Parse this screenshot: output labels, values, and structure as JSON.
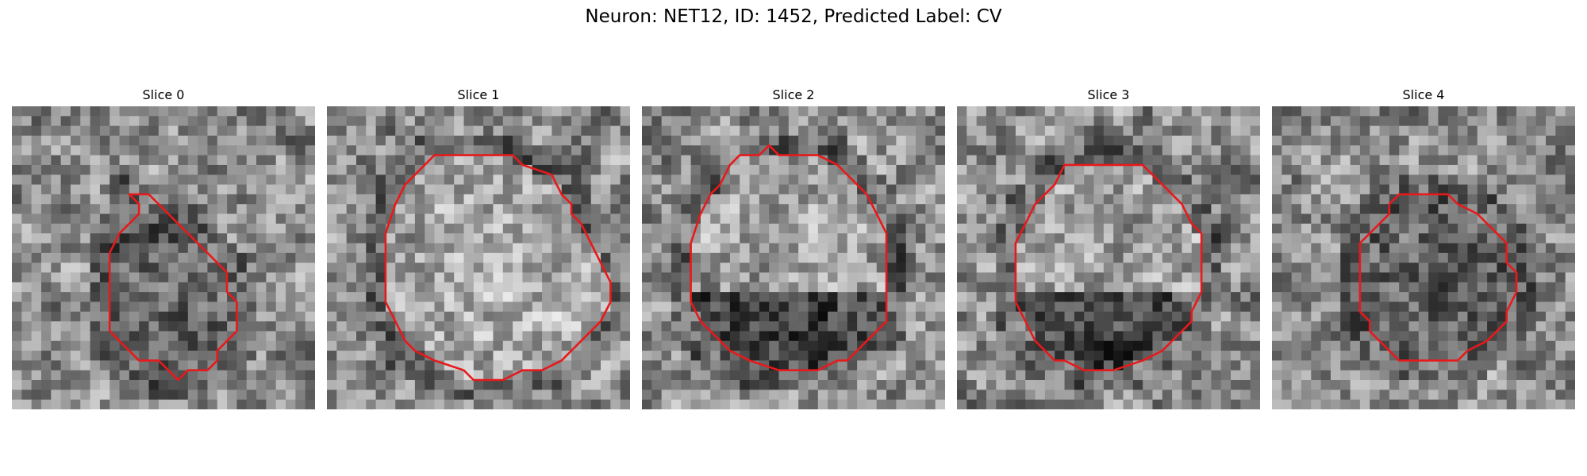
{
  "figure": {
    "title": "Neuron: NET12, ID: 1452, Predicted Label: CV"
  },
  "colors": {
    "contour": "#e8191b",
    "background": "#ffffff",
    "colormap": "grayscale"
  },
  "panels": [
    {
      "title": "Slice 0",
      "grid": {
        "rows": 31,
        "cols": 31
      },
      "contour": [
        [
          12,
          9
        ],
        [
          14,
          9
        ],
        [
          15,
          10
        ],
        [
          17,
          12
        ],
        [
          19,
          14
        ],
        [
          20,
          15
        ],
        [
          21,
          16
        ],
        [
          22,
          17
        ],
        [
          22,
          19
        ],
        [
          23,
          20
        ],
        [
          23,
          23
        ],
        [
          22,
          24
        ],
        [
          21,
          25
        ],
        [
          21,
          26
        ],
        [
          20,
          27
        ],
        [
          18,
          27
        ],
        [
          17,
          28
        ],
        [
          16,
          27
        ],
        [
          15,
          26
        ],
        [
          13,
          26
        ],
        [
          12,
          25
        ],
        [
          11,
          24
        ],
        [
          10,
          23
        ],
        [
          10,
          21
        ],
        [
          10,
          18
        ],
        [
          10,
          15
        ],
        [
          11,
          13
        ],
        [
          12,
          12
        ],
        [
          13,
          11
        ],
        [
          13,
          10
        ]
      ],
      "interior_tone": "darker",
      "seed": 11
    },
    {
      "title": "Slice 1",
      "grid": {
        "rows": 31,
        "cols": 31
      },
      "contour": [
        [
          11,
          5
        ],
        [
          19,
          5
        ],
        [
          20,
          6
        ],
        [
          23,
          7
        ],
        [
          24,
          9
        ],
        [
          25,
          10
        ],
        [
          25,
          11
        ],
        [
          26,
          12
        ],
        [
          27,
          14
        ],
        [
          28,
          16
        ],
        [
          29,
          18
        ],
        [
          29,
          20
        ],
        [
          28,
          22
        ],
        [
          26,
          24
        ],
        [
          24,
          26
        ],
        [
          22,
          27
        ],
        [
          20,
          27
        ],
        [
          18,
          28
        ],
        [
          15,
          28
        ],
        [
          14,
          27
        ],
        [
          11,
          26
        ],
        [
          9,
          25
        ],
        [
          8,
          24
        ],
        [
          7,
          22
        ],
        [
          6,
          20
        ],
        [
          6,
          17
        ],
        [
          6,
          13
        ],
        [
          7,
          10
        ],
        [
          8,
          8
        ],
        [
          9,
          7
        ],
        [
          10,
          6
        ]
      ],
      "interior_tone": "lighter",
      "seed": 23
    },
    {
      "title": "Slice 2",
      "grid": {
        "rows": 31,
        "cols": 31
      },
      "contour": [
        [
          10,
          5
        ],
        [
          12,
          5
        ],
        [
          13,
          4
        ],
        [
          14,
          5
        ],
        [
          18,
          5
        ],
        [
          20,
          6
        ],
        [
          21,
          7
        ],
        [
          22,
          8
        ],
        [
          23,
          9
        ],
        [
          24,
          11
        ],
        [
          25,
          13
        ],
        [
          25,
          16
        ],
        [
          25,
          19
        ],
        [
          25,
          22
        ],
        [
          24,
          23
        ],
        [
          23,
          24
        ],
        [
          22,
          25
        ],
        [
          21,
          26
        ],
        [
          20,
          26
        ],
        [
          18,
          27
        ],
        [
          16,
          27
        ],
        [
          14,
          27
        ],
        [
          11,
          26
        ],
        [
          9,
          25
        ],
        [
          8,
          24
        ],
        [
          6,
          22
        ],
        [
          5,
          20
        ],
        [
          5,
          17
        ],
        [
          5,
          14
        ],
        [
          6,
          11
        ],
        [
          7,
          9
        ],
        [
          8,
          8
        ],
        [
          9,
          6
        ]
      ],
      "interior_tone": "mixed",
      "seed": 37
    },
    {
      "title": "Slice 3",
      "grid": {
        "rows": 31,
        "cols": 31
      },
      "contour": [
        [
          11,
          6
        ],
        [
          19,
          6
        ],
        [
          20,
          7
        ],
        [
          21,
          8
        ],
        [
          22,
          9
        ],
        [
          23,
          10
        ],
        [
          24,
          12
        ],
        [
          25,
          13
        ],
        [
          25,
          16
        ],
        [
          25,
          19
        ],
        [
          24,
          21
        ],
        [
          24,
          22
        ],
        [
          23,
          23
        ],
        [
          22,
          24
        ],
        [
          21,
          25
        ],
        [
          19,
          26
        ],
        [
          16,
          27
        ],
        [
          13,
          27
        ],
        [
          11,
          26
        ],
        [
          10,
          26
        ],
        [
          9,
          25
        ],
        [
          8,
          24
        ],
        [
          7,
          22
        ],
        [
          6,
          20
        ],
        [
          6,
          17
        ],
        [
          6,
          14
        ],
        [
          7,
          12
        ],
        [
          8,
          10
        ],
        [
          9,
          9
        ],
        [
          10,
          8
        ]
      ],
      "interior_tone": "mixed",
      "seed": 41
    },
    {
      "title": "Slice 4",
      "grid": {
        "rows": 31,
        "cols": 31
      },
      "contour": [
        [
          13,
          9
        ],
        [
          18,
          9
        ],
        [
          19,
          10
        ],
        [
          21,
          11
        ],
        [
          22,
          12
        ],
        [
          23,
          13
        ],
        [
          24,
          14
        ],
        [
          24,
          16
        ],
        [
          25,
          17
        ],
        [
          25,
          19
        ],
        [
          24,
          21
        ],
        [
          24,
          22
        ],
        [
          23,
          23
        ],
        [
          22,
          24
        ],
        [
          20,
          25
        ],
        [
          19,
          26
        ],
        [
          16,
          26
        ],
        [
          13,
          26
        ],
        [
          12,
          25
        ],
        [
          11,
          24
        ],
        [
          10,
          23
        ],
        [
          10,
          22
        ],
        [
          9,
          21
        ],
        [
          9,
          19
        ],
        [
          9,
          16
        ],
        [
          9,
          14
        ],
        [
          10,
          13
        ],
        [
          11,
          12
        ],
        [
          12,
          11
        ],
        [
          12,
          10
        ]
      ],
      "interior_tone": "darker",
      "seed": 53
    }
  ]
}
